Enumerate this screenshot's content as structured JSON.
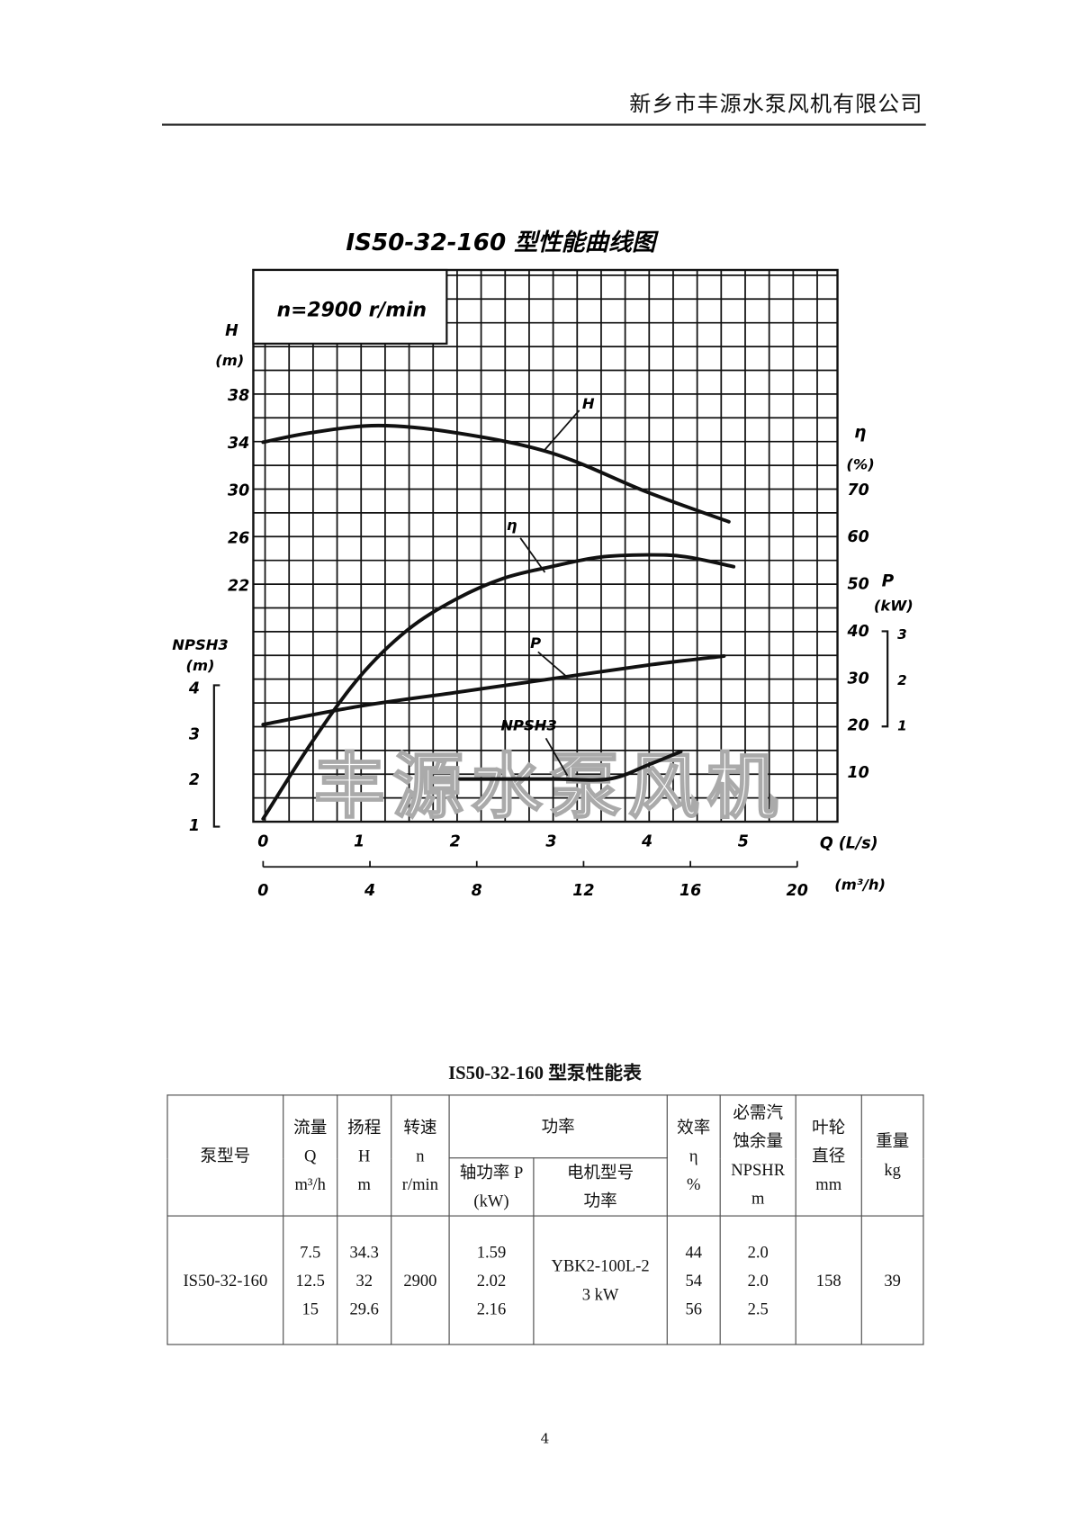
{
  "header": {
    "company": "新乡市丰源水泵风机有限公司"
  },
  "chart_data": {
    "type": "line",
    "title": "IS50-32-160 型性能曲线图",
    "annotation": "n=2900 r/min",
    "watermark": "丰源水泵风机",
    "xlabel": "Q (L/s)",
    "xlabel2": "(m³/h)",
    "xlim": [
      0,
      6
    ],
    "xticks": [
      "0",
      "1",
      "2",
      "3",
      "4",
      "5"
    ],
    "xticks2": [
      "0",
      "4",
      "8",
      "12",
      "16",
      "20"
    ],
    "axes": {
      "H": {
        "label": "H",
        "unit": "(m)",
        "ticks": [
          "38",
          "34",
          "30",
          "26",
          "22"
        ],
        "values": [
          38,
          34,
          30,
          26,
          22
        ]
      },
      "eta": {
        "label": "η",
        "unit": "(%)",
        "ticks": [
          "70",
          "60",
          "50",
          "40",
          "30",
          "20",
          "10"
        ],
        "values": [
          70,
          60,
          50,
          40,
          30,
          20,
          10
        ]
      },
      "P": {
        "label": "P",
        "unit": "(kW)",
        "ticks": [
          "3",
          "2",
          "1"
        ],
        "values": [
          3,
          2,
          1
        ]
      },
      "NPSH3": {
        "label": "NPSH3",
        "unit": "(m)",
        "ticks": [
          "4",
          "3",
          "2",
          "1"
        ],
        "values": [
          4,
          3,
          2,
          1
        ]
      }
    },
    "grid": true,
    "series": [
      {
        "name": "H",
        "axis": "H",
        "x": [
          0,
          0.5,
          1.2,
          2,
          3,
          4,
          4.85
        ],
        "y": [
          34,
          34.8,
          35.4,
          34.8,
          33.1,
          29.8,
          27.3
        ]
      },
      {
        "name": "η",
        "axis": "eta",
        "x": [
          0,
          0.5,
          1,
          1.5,
          2,
          2.5,
          3,
          3.5,
          4,
          4.4,
          4.9
        ],
        "y": [
          0,
          16,
          30,
          40,
          46.5,
          51,
          53.5,
          55.5,
          56,
          55.6,
          53.5
        ]
      },
      {
        "name": "P",
        "axis": "P",
        "x": [
          0,
          1,
          2,
          3,
          4,
          4.8
        ],
        "y": [
          1.0,
          1.4,
          1.7,
          2.0,
          2.3,
          2.5
        ]
      },
      {
        "name": "NPSH3",
        "axis": "NPSH3",
        "x": [
          2.05,
          3,
          3.6,
          4,
          4.35
        ],
        "y": [
          2.0,
          2.0,
          2.0,
          2.3,
          2.6
        ]
      }
    ]
  },
  "table": {
    "title": "IS50-32-160 型泵性能表",
    "headers": {
      "model": "泵型号",
      "flow": [
        "流量",
        "Q",
        "m³/h"
      ],
      "head": [
        "扬程",
        "H",
        "m"
      ],
      "speed": [
        "转速",
        "n",
        "r/min"
      ],
      "power": "功率",
      "shaft_power": [
        "轴功率 P",
        "(kW)"
      ],
      "motor": [
        "电机型号",
        "功率"
      ],
      "eff": [
        "效率",
        "η",
        "%"
      ],
      "npsh": [
        "必需汽",
        "蚀余量",
        "NPSHR",
        "m"
      ],
      "impeller": [
        "叶轮",
        "直径",
        "mm"
      ],
      "weight": [
        "重量",
        "kg"
      ]
    },
    "row": {
      "model": "IS50-32-160",
      "flow": [
        "7.5",
        "12.5",
        "15"
      ],
      "head": [
        "34.3",
        "32",
        "29.6"
      ],
      "speed": "2900",
      "shaft_power": [
        "1.59",
        "2.02",
        "2.16"
      ],
      "motor": [
        "YBK2-100L-2",
        "3 kW"
      ],
      "eff": [
        "44",
        "54",
        "56"
      ],
      "npsh": [
        "2.0",
        "2.0",
        "2.5"
      ],
      "impeller": "158",
      "weight": "39"
    }
  },
  "page_number": "4"
}
